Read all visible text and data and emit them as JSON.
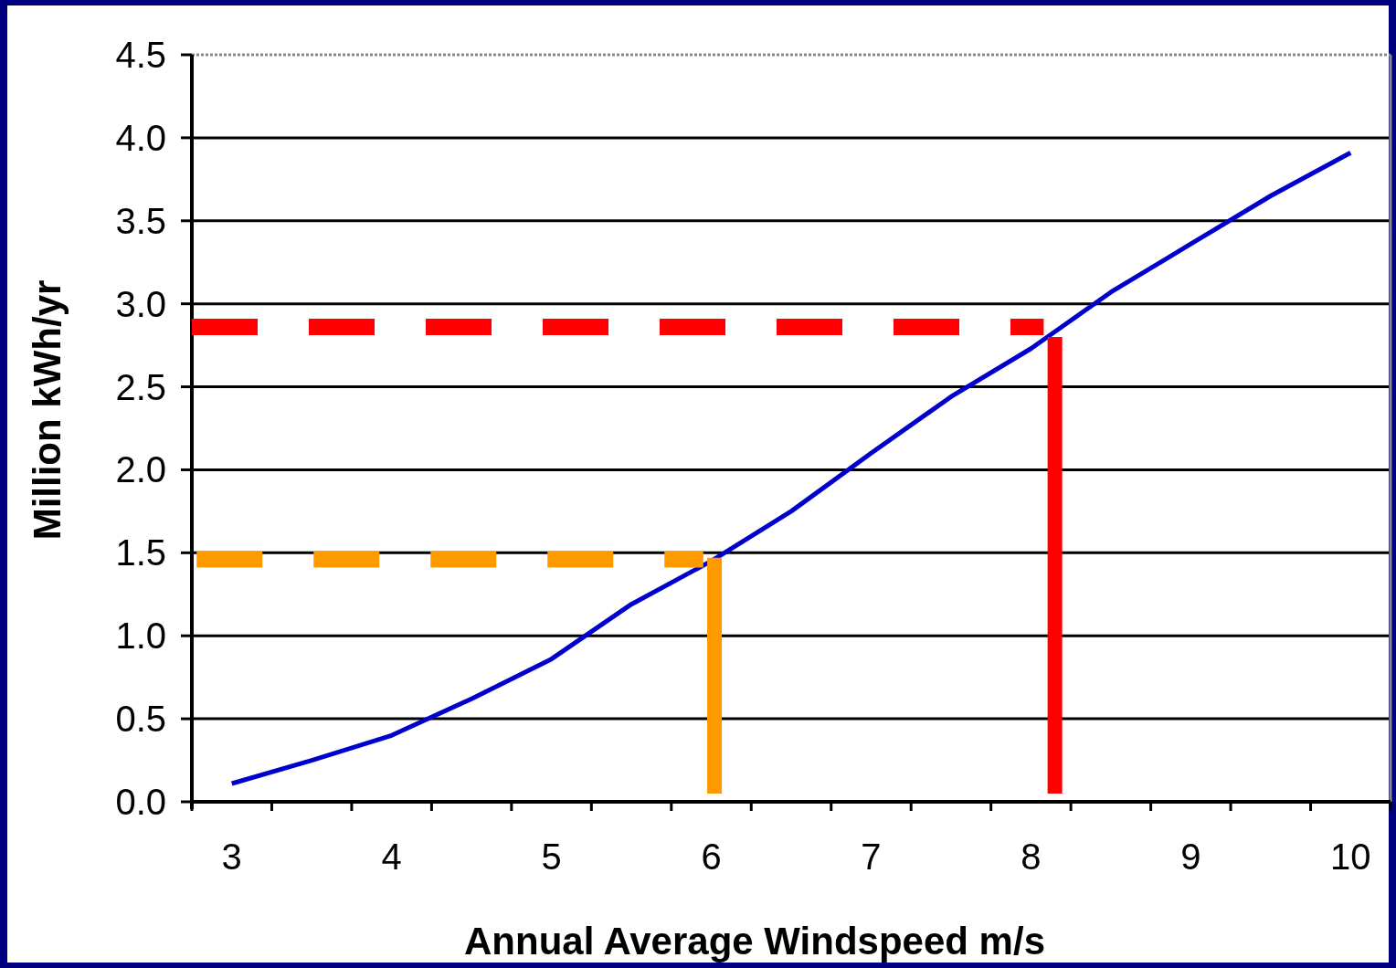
{
  "chart_data": {
    "type": "line",
    "xlabel": "Annual Average Windspeed m/s",
    "ylabel": "Million kWh/yr",
    "x": [
      3,
      3.5,
      4,
      4.5,
      5,
      5.5,
      6,
      6.5,
      7,
      7.5,
      8,
      8.5,
      9,
      9.5,
      10
    ],
    "series": [
      {
        "color": "#0000cc",
        "values": [
          0.11,
          0.25,
          0.4,
          0.62,
          0.86,
          1.19,
          1.45,
          1.75,
          2.1,
          2.44,
          2.73,
          3.07,
          3.36,
          3.65,
          3.91
        ]
      },
      {
        "color": "#ff0000",
        "x": [
          2.75,
          8.08
        ],
        "values": [
          2.86,
          2.86
        ],
        "line_style": "dashed"
      },
      {
        "color": "#ff0000",
        "x": [
          8.15,
          8.15
        ],
        "values": [
          0.05,
          2.8
        ],
        "line_style": "solid"
      },
      {
        "color": "#ff9900",
        "x": [
          2.78,
          5.95
        ],
        "values": [
          1.46,
          1.46
        ],
        "line_style": "dashed"
      },
      {
        "color": "#ff9900",
        "x": [
          6.02,
          6.02
        ],
        "values": [
          0.05,
          1.47
        ],
        "line_style": "solid"
      }
    ],
    "xlim": [
      2.75,
      10.25
    ],
    "xticks": [
      {
        "value": 2.75,
        "label": null
      },
      {
        "value": 3,
        "label": "3"
      },
      {
        "value": 3.25,
        "label": null
      },
      {
        "value": 3.75,
        "label": null
      },
      {
        "value": 4,
        "label": "4"
      },
      {
        "value": 4.25,
        "label": null
      },
      {
        "value": 4.75,
        "label": null
      },
      {
        "value": 5,
        "label": "5"
      },
      {
        "value": 5.25,
        "label": null
      },
      {
        "value": 5.75,
        "label": null
      },
      {
        "value": 6,
        "label": "6"
      },
      {
        "value": 6.25,
        "label": null
      },
      {
        "value": 6.75,
        "label": null
      },
      {
        "value": 7,
        "label": "7"
      },
      {
        "value": 7.25,
        "label": null
      },
      {
        "value": 7.75,
        "label": null
      },
      {
        "value": 8,
        "label": "8"
      },
      {
        "value": 8.25,
        "label": null
      },
      {
        "value": 8.75,
        "label": null
      },
      {
        "value": 9,
        "label": "9"
      },
      {
        "value": 9.25,
        "label": null
      },
      {
        "value": 9.75,
        "label": null
      },
      {
        "value": 10,
        "label": "10"
      },
      {
        "value": 10.25,
        "label": null
      }
    ],
    "ylim": [
      0,
      4.5
    ],
    "yticks": [
      {
        "value": 0,
        "label": "0.0"
      },
      {
        "value": 0.5,
        "label": "0.5"
      },
      {
        "value": 1,
        "label": "1.0"
      },
      {
        "value": 1.5,
        "label": "1.5"
      },
      {
        "value": 2,
        "label": "2.0"
      },
      {
        "value": 2.5,
        "label": "2.5"
      },
      {
        "value": 3,
        "label": "3.0"
      },
      {
        "value": 3.5,
        "label": "3.5"
      },
      {
        "value": 4,
        "label": "4.0"
      },
      {
        "value": 4.5,
        "label": "4.5"
      }
    ],
    "grid": "y",
    "marker": "none"
  }
}
